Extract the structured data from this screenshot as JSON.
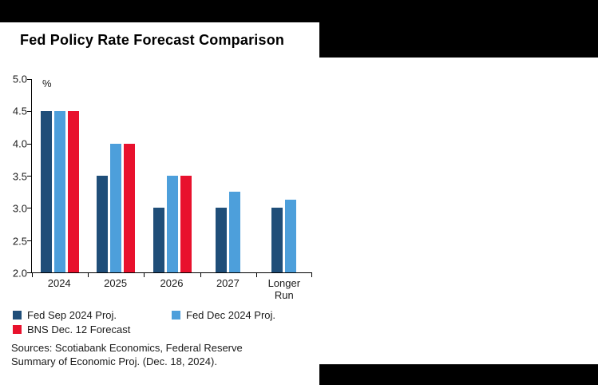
{
  "chart_data": {
    "type": "bar",
    "title": "Fed Policy Rate Forecast Comparison",
    "ylabel": "%",
    "ylim": [
      2.0,
      5.0
    ],
    "yticks": [
      5.0,
      4.5,
      4.0,
      3.5,
      3.0,
      2.5,
      2.0
    ],
    "categories": [
      "2024",
      "2025",
      "2026",
      "2027",
      "Longer Run"
    ],
    "series": [
      {
        "name": "Fed Sep 2024 Proj.",
        "color": "#1F4E79",
        "values": [
          4.5,
          3.5,
          3.0,
          3.0,
          3.0
        ]
      },
      {
        "name": "Fed Dec 2024 Proj.",
        "color": "#4D9FDB",
        "values": [
          4.5,
          4.0,
          3.5,
          3.25,
          3.125
        ]
      },
      {
        "name": "BNS Dec. 12 Forecast",
        "color": "#E8112D",
        "values": [
          4.5,
          4.0,
          3.5,
          null,
          null
        ]
      }
    ],
    "legend_position": "bottom",
    "grid": false
  },
  "footer": {
    "lines": [
      "Sources: Scotiabank Economics, Federal Reserve",
      "Summary of Economic Proj. (Dec. 18, 2024)."
    ]
  }
}
